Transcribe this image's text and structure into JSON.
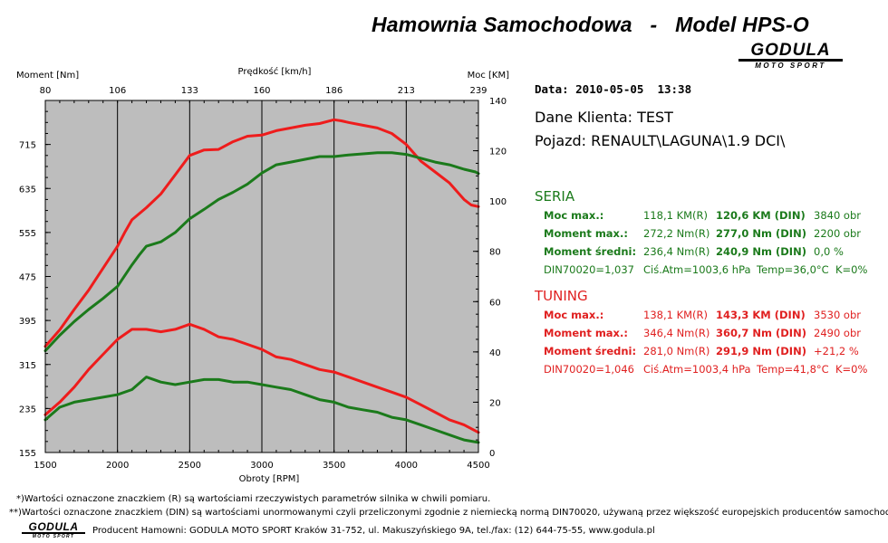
{
  "header": {
    "title": "Hamownia Samochodowa   -   Model HPS-O",
    "logo_main": "GODULA",
    "logo_sub": "MOTO SPORT"
  },
  "chart_data": {
    "type": "line",
    "xlabel": "Obroty [RPM]",
    "x_top_label": "Prędkość [km/h]",
    "y_left_label": "Moment [Nm]",
    "y_right_label": "Moc [KM]",
    "xlim": [
      1500,
      4500
    ],
    "ylim_left": [
      155,
      795
    ],
    "ylim_right": [
      0,
      140
    ],
    "x_ticks": [
      1500,
      2000,
      2500,
      3000,
      3500,
      4000,
      4500
    ],
    "x_top_ticks": [
      "80",
      "106",
      "133",
      "160",
      "186",
      "213",
      "239"
    ],
    "y_left_ticks": [
      155,
      235,
      315,
      395,
      475,
      555,
      635,
      715
    ],
    "y_right_ticks": [
      0,
      20,
      40,
      60,
      80,
      100,
      120,
      140
    ],
    "series": [
      {
        "key": "tuning_moment",
        "axis": "left",
        "color": "#ee1c1c",
        "x": [
          1500,
          1600,
          1700,
          1800,
          1900,
          2000,
          2050,
          2100,
          2200,
          2300,
          2400,
          2500,
          2600,
          2700,
          2800,
          2900,
          3000,
          3100,
          3200,
          3300,
          3400,
          3500,
          3550,
          3600,
          3700,
          3800,
          3900,
          4000,
          4100,
          4200,
          4300,
          4400,
          4450,
          4500
        ],
        "y": [
          348,
          378,
          415,
          450,
          490,
          530,
          555,
          578,
          600,
          625,
          660,
          695,
          705,
          706,
          720,
          730,
          732,
          740,
          745,
          750,
          753,
          760,
          758,
          755,
          750,
          745,
          735,
          715,
          685,
          665,
          645,
          615,
          605,
          602
        ]
      },
      {
        "key": "seria_moment",
        "axis": "left",
        "color": "#1b7a1b",
        "x": [
          1500,
          1600,
          1700,
          1800,
          1900,
          2000,
          2100,
          2150,
          2200,
          2300,
          2400,
          2500,
          2600,
          2700,
          2800,
          2900,
          3000,
          3100,
          3200,
          3300,
          3400,
          3500,
          3600,
          3700,
          3800,
          3900,
          4000,
          4100,
          4200,
          4300,
          4400,
          4480,
          4500
        ],
        "y": [
          340,
          368,
          393,
          415,
          435,
          457,
          496,
          514,
          530,
          538,
          555,
          580,
          597,
          615,
          628,
          643,
          663,
          678,
          683,
          688,
          693,
          693,
          696,
          698,
          700,
          700,
          697,
          690,
          683,
          678,
          670,
          665,
          662
        ]
      },
      {
        "key": "tuning_moc",
        "axis": "right",
        "color": "#ee1c1c",
        "x": [
          1500,
          1600,
          1700,
          1800,
          1900,
          2000,
          2100,
          2200,
          2300,
          2400,
          2500,
          2600,
          2700,
          2800,
          2900,
          3000,
          3100,
          3200,
          3300,
          3400,
          3500,
          3600,
          3700,
          3800,
          3900,
          4000,
          4100,
          4200,
          4300,
          4400,
          4500
        ],
        "y": [
          15,
          20,
          26,
          33,
          39,
          45,
          49,
          49,
          48,
          49,
          51,
          49,
          46,
          45,
          43,
          41,
          38,
          37,
          35,
          33,
          32,
          30,
          28,
          26,
          24,
          22,
          19,
          16,
          13,
          11,
          8
        ]
      },
      {
        "key": "seria_moc",
        "axis": "right",
        "color": "#1b7a1b",
        "x": [
          1500,
          1600,
          1700,
          1800,
          1900,
          2000,
          2100,
          2200,
          2300,
          2400,
          2500,
          2600,
          2700,
          2800,
          2900,
          3000,
          3100,
          3200,
          3300,
          3400,
          3500,
          3600,
          3700,
          3800,
          3900,
          4000,
          4100,
          4200,
          4300,
          4400,
          4500
        ],
        "y": [
          13,
          18,
          20,
          21,
          22,
          23,
          25,
          30,
          28,
          27,
          28,
          29,
          29,
          28,
          28,
          27,
          26,
          25,
          23,
          21,
          20,
          18,
          17,
          16,
          14,
          13,
          11,
          9,
          7,
          5,
          4
        ]
      }
    ]
  },
  "info": {
    "date": "Data: 2010-05-05  13:38",
    "client": "Dane Klienta: TEST",
    "vehicle": "Pojazd: RENAULT\\LAGUNA\\1.9 DCI\\"
  },
  "seria": {
    "title": "SERIA",
    "color": "#1b7a1b",
    "rows": [
      {
        "label": "Moc max.:",
        "r": "118,1 KM(R)",
        "din": "120,6 KM (DIN)",
        "extra": "3840 obr"
      },
      {
        "label": "Moment max.:",
        "r": "272,2 Nm(R)",
        "din": "277,0 Nm (DIN)",
        "extra": "2200 obr"
      },
      {
        "label": "Moment średni:",
        "r": "236,4 Nm(R)",
        "din": "240,9 Nm (DIN)",
        "extra": "0,0 %"
      }
    ],
    "din_line": {
      "din": "DIN70020=1,037",
      "atm": "Ciś.Atm=1003,6 hPa",
      "temp": "Temp=36,0°C",
      "k": "K=0%"
    }
  },
  "tuning": {
    "title": "TUNING",
    "color": "#e02020",
    "rows": [
      {
        "label": "Moc max.:",
        "r": "138,1 KM(R)",
        "din": "143,3 KM (DIN)",
        "extra": "3530 obr"
      },
      {
        "label": "Moment max.:",
        "r": "346,4 Nm(R)",
        "din": "360,7 Nm (DIN)",
        "extra": "2490 obr"
      },
      {
        "label": "Moment średni:",
        "r": "281,0 Nm(R)",
        "din": "291,9 Nm (DIN)",
        "extra": "+21,2 %"
      }
    ],
    "din_line": {
      "din": "DIN70020=1,046",
      "atm": "Ciś.Atm=1003,4 hPa",
      "temp": "Temp=41,8°C",
      "k": "K=0%"
    }
  },
  "footer": {
    "note1": "*)Wartości oznaczone znaczkiem (R) są wartościami rzeczywistych parametrów silnika w chwili pomiaru.",
    "note2": "**)Wartości oznaczone znaczkiem (DIN) są wartościami unormowanymi czyli przeliczonymi zgodnie z niemiecką normą DIN70020, używaną przez większość europejskich producentów samochodów.",
    "producer": "Producent Hamowni: GODULA MOTO SPORT Kraków 31-752, ul. Makuszyńskiego 9A, tel./fax: (12) 644-75-55, www.godula.pl",
    "logo_main": "GODULA",
    "logo_sub": "MOTO SPORT"
  }
}
